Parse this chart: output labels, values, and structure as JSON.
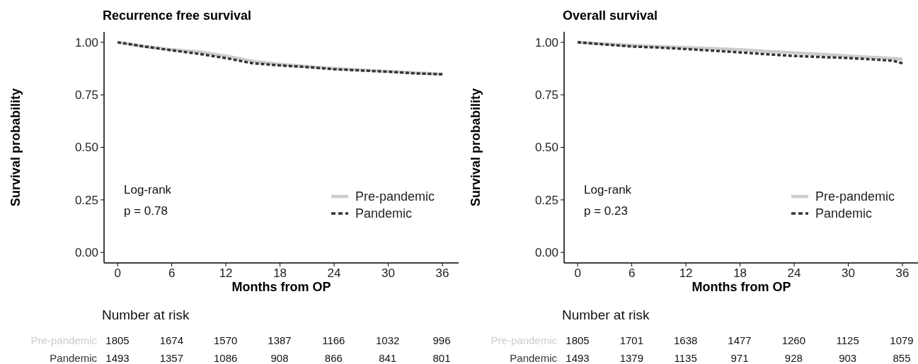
{
  "chart_data": [
    {
      "type": "line",
      "title": "Recurrence free survival",
      "xlabel": "Months from OP",
      "ylabel": "Survival probability",
      "xlim": [
        -1.5,
        37.8
      ],
      "ylim": [
        -0.05,
        1.05
      ],
      "xticks": [
        0,
        6,
        12,
        18,
        24,
        30,
        36
      ],
      "yticks": [
        {
          "value": 0,
          "label": "0.00"
        },
        {
          "value": 0.25,
          "label": "0.25"
        },
        {
          "value": 0.5,
          "label": "0.50"
        },
        {
          "value": 0.75,
          "label": "0.75"
        },
        {
          "value": 1,
          "label": "1.00"
        }
      ],
      "grid": false,
      "legend": "right",
      "annotations": [
        "Log-rank",
        "p = 0.78"
      ],
      "x": [
        0,
        3,
        6,
        9,
        12,
        15,
        18,
        21,
        24,
        27,
        30,
        33,
        36
      ],
      "series": [
        {
          "name": "Pre-pandemic",
          "color": "#cccccc",
          "line_style": "solid",
          "values": [
            1,
            0.98,
            0.965,
            0.955,
            0.935,
            0.91,
            0.895,
            0.885,
            0.875,
            0.868,
            0.862,
            0.855,
            0.848
          ]
        },
        {
          "name": "Pandemic",
          "color": "#333333",
          "line_style": "dashed",
          "values": [
            1,
            0.98,
            0.962,
            0.945,
            0.925,
            0.9,
            0.89,
            0.882,
            0.872,
            0.866,
            0.86,
            0.852,
            0.848
          ]
        }
      ]
    },
    {
      "type": "other",
      "title": "Number at risk",
      "colors": [
        "#cccccc",
        "#333333"
      ],
      "annotations": [
        "Pre-pandemic",
        "1805",
        "1674",
        "1570",
        "1387",
        "1166",
        "1032",
        "996",
        "Pandemic",
        "1493",
        "1357",
        "1086",
        "908",
        "866",
        "841",
        "801"
      ]
    },
    {
      "type": "line",
      "title": "Overall survival",
      "xlabel": "Months from OP",
      "ylabel": "Survival probability",
      "xlim": [
        -1.5,
        37.8
      ],
      "ylim": [
        -0.05,
        1.05
      ],
      "xticks": [
        0,
        6,
        12,
        18,
        24,
        30,
        36
      ],
      "yticks": [
        {
          "value": 0,
          "label": "0.00"
        },
        {
          "value": 0.25,
          "label": "0.25"
        },
        {
          "value": 0.5,
          "label": "0.50"
        },
        {
          "value": 0.75,
          "label": "0.75"
        },
        {
          "value": 1,
          "label": "1.00"
        }
      ],
      "grid": false,
      "legend": "right",
      "annotations": [
        "Log-rank",
        "p = 0.23"
      ],
      "x": [
        0,
        3,
        6,
        9,
        12,
        15,
        18,
        21,
        24,
        27,
        30,
        33,
        35,
        36
      ],
      "series": [
        {
          "name": "Pre-pandemic",
          "color": "#cccccc",
          "line_style": "solid",
          "values": [
            1,
            0.992,
            0.985,
            0.98,
            0.975,
            0.97,
            0.965,
            0.957,
            0.95,
            0.943,
            0.935,
            0.928,
            0.923,
            0.92
          ]
        },
        {
          "name": "Pandemic",
          "color": "#333333",
          "line_style": "dashed",
          "values": [
            1,
            0.99,
            0.98,
            0.975,
            0.968,
            0.96,
            0.952,
            0.943,
            0.935,
            0.93,
            0.925,
            0.918,
            0.912,
            0.9
          ]
        }
      ]
    },
    {
      "type": "other",
      "title": "Number at risk",
      "colors": [
        "#cccccc",
        "#333333"
      ],
      "annotations": [
        "Pre-pandemic",
        "1805",
        "1701",
        "1638",
        "1477",
        "1260",
        "1125",
        "1079",
        "Pandemic",
        "1493",
        "1379",
        "1135",
        "971",
        "928",
        "903",
        "855"
      ]
    }
  ]
}
